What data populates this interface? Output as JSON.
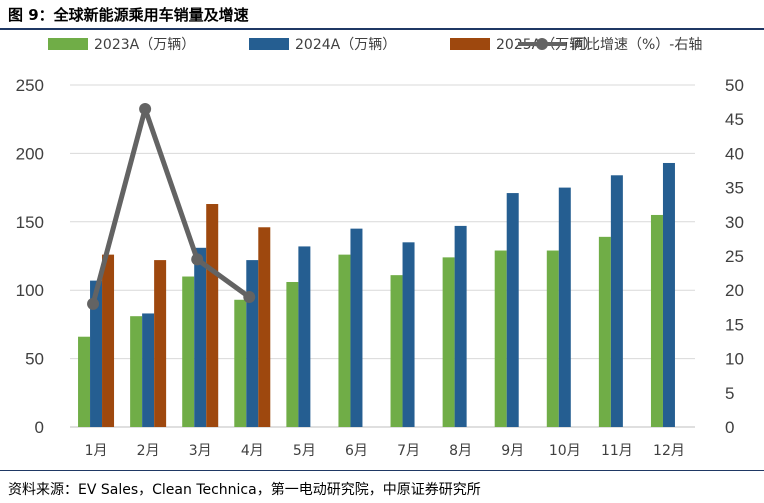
{
  "title": "图 9：全球新能源乘用车销量及增速",
  "source": "资料来源：EV Sales，Clean Technica，第一电动研究院，中原证券研究所",
  "chart_data": {
    "type": "bar",
    "categories": [
      "1月",
      "2月",
      "3月",
      "4月",
      "5月",
      "6月",
      "7月",
      "8月",
      "9月",
      "10月",
      "11月",
      "12月"
    ],
    "series": [
      {
        "name": "2023A（万辆）",
        "color": "#70ad47",
        "values": [
          66,
          81,
          110,
          93,
          106,
          126,
          111,
          124,
          129,
          129,
          139,
          155
        ]
      },
      {
        "name": "2024A（万辆）",
        "color": "#255e91",
        "values": [
          107,
          83,
          131,
          122,
          132,
          145,
          135,
          147,
          171,
          175,
          184,
          193
        ]
      },
      {
        "name": "2025A（万辆）",
        "color": "#9e480e",
        "values": [
          126,
          122,
          163,
          146,
          null,
          null,
          null,
          null,
          null,
          null,
          null,
          null
        ]
      }
    ],
    "line_series": {
      "name": "同比增速（%）-右轴",
      "color": "#636363",
      "axis": "right",
      "values": [
        18,
        46.5,
        24.5,
        19,
        null,
        null,
        null,
        null,
        null,
        null,
        null,
        null
      ]
    },
    "ylim": [
      0,
      250
    ],
    "yticks": [
      0,
      50,
      100,
      150,
      200,
      250
    ],
    "y2lim": [
      0,
      50
    ],
    "y2ticks": [
      0,
      5,
      10,
      15,
      20,
      25,
      30,
      35,
      40,
      45,
      50
    ],
    "grid": true,
    "legend_position": "top"
  }
}
